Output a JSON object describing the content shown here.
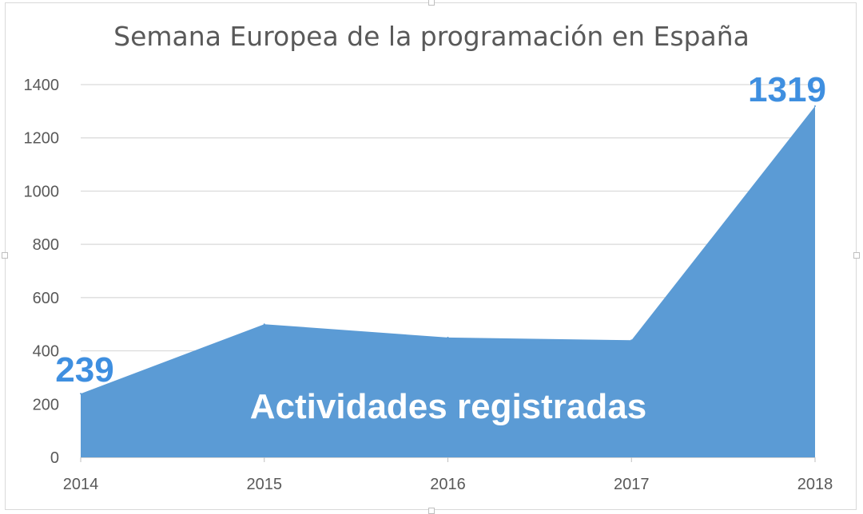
{
  "chart_data": {
    "type": "area",
    "title": "Semana Europea de la programación en España",
    "categories": [
      "2014",
      "2015",
      "2016",
      "2017",
      "2018"
    ],
    "series": [
      {
        "name": "Actividades registradas",
        "values": [
          239,
          500,
          450,
          440,
          1319
        ]
      }
    ],
    "ylim": [
      0,
      1400
    ],
    "yticks": [
      "0",
      "200",
      "400",
      "600",
      "800",
      "1000",
      "1200",
      "1400"
    ],
    "xlabel": "",
    "ylabel": "",
    "grid": true,
    "annotations": {
      "first_value": "239",
      "last_value": "1319"
    },
    "series_label": "Actividades registradas",
    "colors": {
      "area": "#5b9bd5",
      "annotation": "#3f8fe0",
      "grid": "#d9d9d9",
      "text": "#595959"
    }
  }
}
